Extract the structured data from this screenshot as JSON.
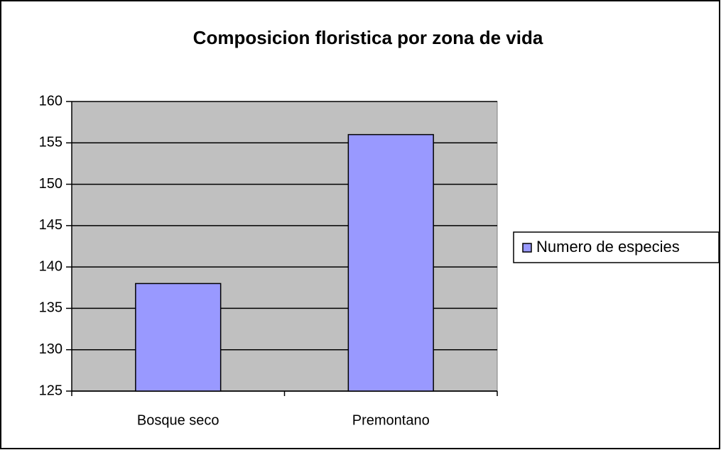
{
  "chart_data": {
    "type": "bar",
    "title": "Composicion floristica por zona de vida",
    "categories": [
      "Bosque seco",
      "Premontano"
    ],
    "series": [
      {
        "name": "Numero de especies",
        "color": "#9999ff",
        "values": [
          138,
          156
        ]
      }
    ],
    "ylim": [
      125,
      160
    ],
    "yticks": [
      125,
      130,
      135,
      140,
      145,
      150,
      155,
      160
    ],
    "grid": true,
    "legend": "right"
  }
}
